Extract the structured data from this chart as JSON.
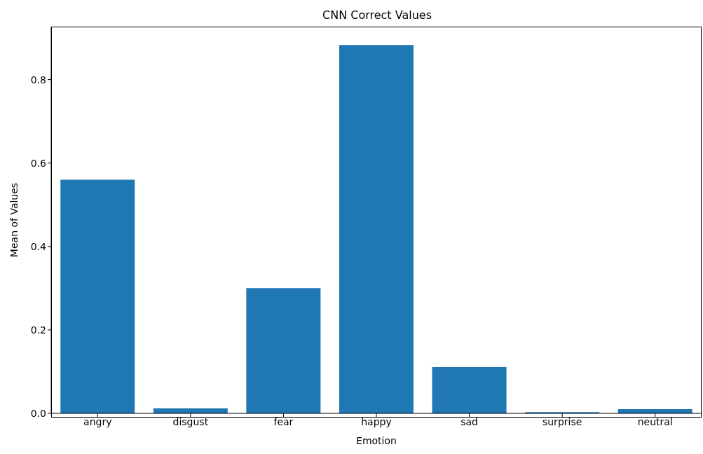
{
  "chart_data": {
    "type": "bar",
    "title": "CNN Correct Values",
    "xlabel": "Emotion",
    "ylabel": "Mean of Values",
    "categories": [
      "angry",
      "disgust",
      "fear",
      "happy",
      "sad",
      "surprise",
      "neutral"
    ],
    "values": [
      0.56,
      0.012,
      0.3,
      0.883,
      0.111,
      0.003,
      0.01
    ],
    "color": "#1f77b4",
    "ylim": [
      0,
      0.927
    ],
    "yticks": [
      {
        "value": 0,
        "label": "0.0"
      },
      {
        "value": 0.2,
        "label": "0.2"
      },
      {
        "value": 0.4,
        "label": "0.4"
      },
      {
        "value": 0.6,
        "label": "0.6"
      },
      {
        "value": 0.8,
        "label": "0.8"
      }
    ],
    "grid": false
  }
}
